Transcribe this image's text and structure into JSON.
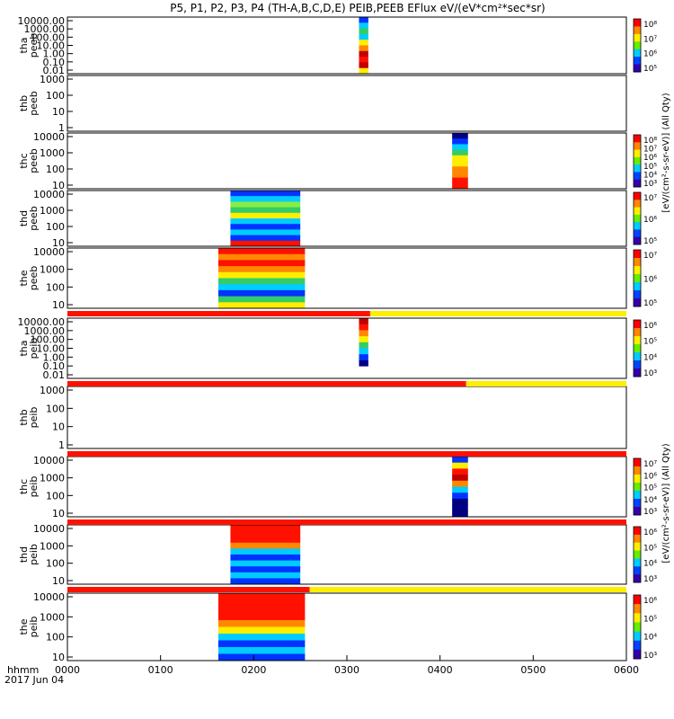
{
  "title": "P5, P1, P2, P3, P4 (TH-A,B,C,D,E) PEIB,PEEB EFlux eV/(eV*cm²*sec*sr)",
  "colorbar_label_top": "[eV/(cm²-s-sr-eV)] (All Qty)",
  "colorbar_label_bottom": "[eV/(cm²-s-sr-eV)] (All Qty)",
  "x_axis": {
    "label_unit": "hhmm",
    "date": "2017 Jun 04"
  },
  "chart_data": {
    "type": "heatmap",
    "x": {
      "ticks": [
        "0000",
        "0100",
        "0200",
        "0300",
        "0400",
        "0500",
        "0600"
      ],
      "range_hours": [
        0,
        6
      ]
    },
    "panels": [
      {
        "id": "tha-peeb",
        "label": [
          "tha",
          "peeb"
        ],
        "yticks": [
          "10000.00",
          "1000.00",
          "100.00",
          "10.00",
          "1.00",
          "0.10",
          "0.01"
        ],
        "colorbar": [
          "10⁸",
          "10⁷",
          "10⁶",
          "10⁵"
        ],
        "segments": [
          {
            "start": 3.13,
            "end": 3.23,
            "rows": [
              "blue",
              "cyan",
              "green",
              "cyan",
              "yellow",
              "orange",
              "darkred",
              "red",
              "darkred",
              "yellow"
            ]
          }
        ]
      },
      {
        "id": "thb-peeb",
        "label": [
          "thb",
          "peeb"
        ],
        "yticks": [
          "1000",
          "100",
          "10",
          "1"
        ],
        "colorbar": [],
        "segments": []
      },
      {
        "id": "thc-peeb",
        "label": [
          "thc",
          "peeb"
        ],
        "yticks": [
          "10000",
          "1000",
          "100",
          "10"
        ],
        "colorbar": [
          "10⁸",
          "10⁷",
          "10⁶",
          "10⁵",
          "10⁴",
          "10³"
        ],
        "segments": [
          {
            "start": 4.13,
            "end": 4.3,
            "rows": [
              "navy",
              "blue",
              "cyan",
              "green",
              "yellow",
              "yellow",
              "orange",
              "orange",
              "red",
              "red"
            ]
          }
        ]
      },
      {
        "id": "thd-peeb",
        "label": [
          "thd",
          "peeb"
        ],
        "yticks": [
          "10000",
          "1000",
          "100",
          "10"
        ],
        "colorbar": [
          "10⁷",
          "10⁶",
          "10⁵"
        ],
        "segments": [
          {
            "start": 1.75,
            "end": 2.5,
            "rows": [
              "blue",
              "cyan",
              "lime",
              "green",
              "yellow",
              "cyan",
              "blue",
              "cyan",
              "blue",
              "red"
            ]
          }
        ]
      },
      {
        "id": "the-peeb",
        "label": [
          "the",
          "peeb"
        ],
        "yticks": [
          "10000",
          "1000",
          "100",
          "10"
        ],
        "colorbar": [
          "10⁷",
          "10⁶",
          "10⁵"
        ],
        "segments": [
          {
            "start": 1.62,
            "end": 2.55,
            "rows": [
              "red",
              "orange",
              "red",
              "orange",
              "yellow",
              "green",
              "cyan",
              "blue",
              "green",
              "yellow"
            ]
          }
        ]
      },
      {
        "id": "tha-peib",
        "label": [
          "tha",
          "peib"
        ],
        "yticks": [
          "10000.00",
          "1000.00",
          "100.00",
          "10.00",
          "1.00",
          "0.10",
          "0.01"
        ],
        "colorbar": [
          "10⁶",
          "10⁵",
          "10⁴",
          "10³"
        ],
        "segments": [
          {
            "start": 3.13,
            "end": 3.23,
            "rows": [
              "darkred",
              "red",
              "orange",
              "yellow",
              "green",
              "cyan",
              "blue",
              "navy",
              "white",
              "white"
            ]
          }
        ]
      },
      {
        "id": "thb-peib",
        "label": [
          "thb",
          "peib"
        ],
        "yticks": [
          "1000",
          "100",
          "10",
          "1"
        ],
        "colorbar": [],
        "segments": []
      },
      {
        "id": "thc-peib",
        "label": [
          "thc",
          "peib"
        ],
        "yticks": [
          "10000",
          "1000",
          "100",
          "10"
        ],
        "colorbar": [
          "10⁷",
          "10⁶",
          "10⁵",
          "10⁴",
          "10³"
        ],
        "segments": [
          {
            "start": 4.13,
            "end": 4.3,
            "rows": [
              "blue",
              "yellow",
              "red",
              "darkred",
              "orange",
              "cyan",
              "blue",
              "navy",
              "navy",
              "navy"
            ]
          }
        ]
      },
      {
        "id": "thd-peib",
        "label": [
          "thd",
          "peib"
        ],
        "yticks": [
          "10000",
          "1000",
          "100",
          "10"
        ],
        "colorbar": [
          "10⁶",
          "10⁵",
          "10⁴",
          "10³"
        ],
        "segments": [
          {
            "start": 1.75,
            "end": 2.5,
            "rows": [
              "red",
              "red",
              "red",
              "orange",
              "cyan",
              "blue",
              "cyan",
              "blue",
              "cyan",
              "blue"
            ]
          }
        ]
      },
      {
        "id": "the-peib",
        "label": [
          "the",
          "peib"
        ],
        "yticks": [
          "10000",
          "1000",
          "100",
          "10"
        ],
        "colorbar": [
          "10⁶",
          "10⁵",
          "10⁴",
          "10³"
        ],
        "segments": [
          {
            "start": 1.62,
            "end": 2.55,
            "rows": [
              "red",
              "red",
              "red",
              "red",
              "orange",
              "yellow",
              "cyan",
              "blue",
              "cyan",
              "blue"
            ]
          }
        ]
      }
    ],
    "mode_bars": [
      {
        "after_panel": "the-peeb",
        "red_until_hours": 3.25,
        "colors": [
          "red",
          "yellow"
        ]
      },
      {
        "after_panel": "tha-peib",
        "red_until_hours": 4.28,
        "colors": [
          "red",
          "yellow"
        ]
      },
      {
        "after_panel": "thb-peib",
        "red_until_hours": 6.0,
        "colors": [
          "red",
          "yellow"
        ]
      },
      {
        "after_panel": "thc-peib",
        "red_until_hours": 6.0,
        "colors": [
          "red",
          "yellow"
        ]
      },
      {
        "after_panel": "thd-peib",
        "red_until_hours": 2.6,
        "colors": [
          "red",
          "yellow"
        ]
      }
    ],
    "colors": {
      "navy": "#000080",
      "blue": "#0033ff",
      "cyan": "#00ccff",
      "green": "#33cc66",
      "lime": "#88ee44",
      "yellow": "#ffee00",
      "orange": "#ff8800",
      "red": "#ff1100",
      "darkred": "#c00000",
      "white": "#ffffff"
    }
  }
}
